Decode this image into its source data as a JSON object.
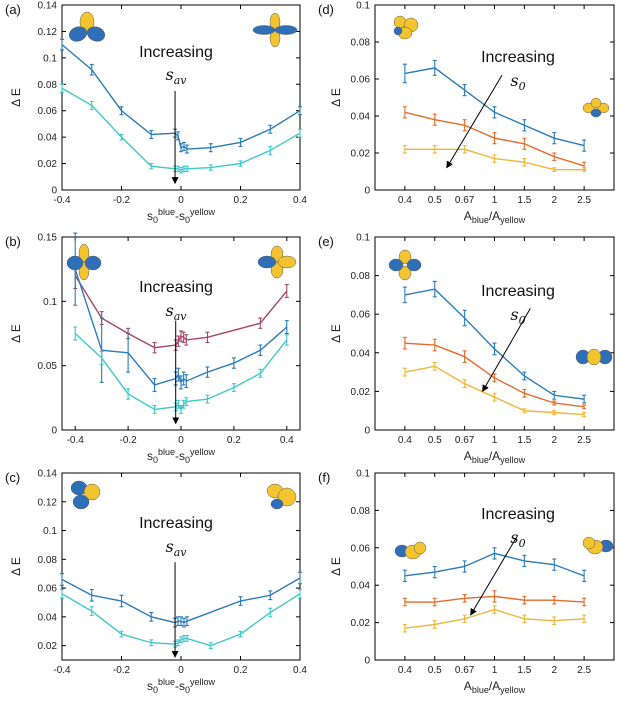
{
  "colors": {
    "blue": "#2a7cb8",
    "cyan": "#3fc9cc",
    "red": "#a34866",
    "orange": "#e46c2a",
    "yellow": "#f0b63a",
    "orb_blue": "#2f6fb7",
    "orb_yellow": "#f4c430"
  },
  "chart_data": [
    {
      "id": "a",
      "panel_label": "(a)",
      "type": "line",
      "xlabel": "s0blue-s0yellow",
      "ylabel": "Δ E",
      "xlim": [
        -0.4,
        0.4
      ],
      "ylim": [
        0,
        0.14
      ],
      "xticks": [
        -0.4,
        -0.2,
        0,
        0.2,
        0.4
      ],
      "xtick_labels": [
        "-0.4",
        "-0.2",
        "0",
        "0.2",
        "0.4"
      ],
      "yticks": [
        0,
        0.02,
        0.04,
        0.06,
        0.08,
        0.1,
        0.12,
        0.14
      ],
      "ytick_labels": [
        "0",
        "0.02",
        "0.04",
        "0.06",
        "0.08",
        "0.1",
        "0.12",
        "0.14"
      ],
      "annotation": {
        "text": "Increasing",
        "symbol": "s",
        "subscript": "av",
        "arrow": {
          "x": -0.02,
          "y_start": 0.075,
          "y_end": 0.005
        }
      },
      "series": [
        {
          "color": "blue",
          "x": [
            -0.4,
            -0.3,
            -0.2,
            -0.1,
            -0.02,
            -0.01,
            0,
            0.01,
            0.02,
            0.1,
            0.2,
            0.3,
            0.4
          ],
          "y": [
            0.11,
            0.091,
            0.06,
            0.042,
            0.043,
            0.041,
            0.032,
            0.033,
            0.031,
            0.032,
            0.036,
            0.046,
            0.06
          ],
          "err": [
            0.004,
            0.004,
            0.003,
            0.003,
            0.003,
            0.003,
            0.003,
            0.003,
            0.003,
            0.003,
            0.003,
            0.003,
            0.003
          ]
        },
        {
          "color": "cyan",
          "x": [
            -0.4,
            -0.3,
            -0.2,
            -0.1,
            -0.02,
            -0.01,
            0,
            0.01,
            0.02,
            0.1,
            0.2,
            0.3,
            0.4
          ],
          "y": [
            0.077,
            0.064,
            0.04,
            0.018,
            0.016,
            0.016,
            0.015,
            0.016,
            0.016,
            0.017,
            0.02,
            0.03,
            0.043
          ],
          "err": [
            0.003,
            0.003,
            0.002,
            0.002,
            0.002,
            0.002,
            0.002,
            0.002,
            0.002,
            0.002,
            0.002,
            0.003,
            0.003
          ]
        }
      ],
      "icons": [
        {
          "name": "orbital-icon-three-lobe-blue",
          "pos": "top-left",
          "style": "a_left"
        },
        {
          "name": "orbital-icon-cross-blue",
          "pos": "top-right",
          "style": "a_right"
        }
      ]
    },
    {
      "id": "b",
      "panel_label": "(b)",
      "type": "line",
      "xlabel": "s0blue-s0yellow",
      "ylabel": "Δ E",
      "xlim": [
        -0.45,
        0.45
      ],
      "ylim": [
        0,
        0.15
      ],
      "xticks": [
        -0.4,
        -0.2,
        0,
        0.2,
        0.4
      ],
      "xtick_labels": [
        "-0.4",
        "-0.2",
        "0",
        "0.2",
        "0.4"
      ],
      "yticks": [
        0,
        0.05,
        0.1,
        0.15
      ],
      "ytick_labels": [
        "0",
        "0.05",
        "0.1",
        "0.15"
      ],
      "annotation": {
        "text": "Increasing",
        "symbol": "s",
        "subscript": "av",
        "arrow": {
          "x": -0.02,
          "y_start": 0.085,
          "y_end": 0.005
        }
      },
      "series": [
        {
          "color": "red",
          "x": [
            -0.4,
            -0.3,
            -0.2,
            -0.1,
            -0.02,
            -0.01,
            0,
            0.01,
            0.02,
            0.1,
            0.3,
            0.4
          ],
          "y": [
            0.12,
            0.087,
            0.075,
            0.064,
            0.066,
            0.069,
            0.073,
            0.072,
            0.07,
            0.072,
            0.083,
            0.108
          ],
          "err": [
            0.01,
            0.005,
            0.004,
            0.004,
            0.004,
            0.004,
            0.004,
            0.004,
            0.004,
            0.004,
            0.004,
            0.005
          ]
        },
        {
          "color": "blue",
          "x": [
            -0.4,
            -0.3,
            -0.2,
            -0.1,
            -0.02,
            -0.01,
            0,
            0.01,
            0.02,
            0.1,
            0.2,
            0.3,
            0.4
          ],
          "y": [
            0.125,
            0.062,
            0.06,
            0.035,
            0.04,
            0.043,
            0.037,
            0.04,
            0.038,
            0.045,
            0.052,
            0.062,
            0.08
          ],
          "err": [
            0.028,
            0.025,
            0.015,
            0.005,
            0.005,
            0.005,
            0.005,
            0.005,
            0.005,
            0.004,
            0.004,
            0.004,
            0.005
          ]
        },
        {
          "color": "cyan",
          "x": [
            -0.4,
            -0.3,
            -0.2,
            -0.1,
            -0.02,
            -0.01,
            0,
            0.01,
            0.02,
            0.1,
            0.2,
            0.3,
            0.4
          ],
          "y": [
            0.075,
            0.056,
            0.028,
            0.016,
            0.018,
            0.02,
            0.016,
            0.02,
            0.022,
            0.024,
            0.033,
            0.044,
            0.07
          ],
          "err": [
            0.005,
            0.005,
            0.004,
            0.003,
            0.003,
            0.003,
            0.003,
            0.003,
            0.003,
            0.003,
            0.003,
            0.003,
            0.004
          ]
        }
      ],
      "icons": [
        {
          "name": "orbital-icon-cross-yellow",
          "pos": "top-left",
          "style": "b_left"
        },
        {
          "name": "orbital-icon-cross-yellow-side",
          "pos": "top-right",
          "style": "b_right"
        }
      ]
    },
    {
      "id": "c",
      "panel_label": "(c)",
      "type": "line",
      "xlabel": "s0blue-s0yellow",
      "ylabel": "Δ E",
      "xlim": [
        -0.4,
        0.4
      ],
      "ylim": [
        0.01,
        0.14
      ],
      "xticks": [
        -0.4,
        -0.2,
        0,
        0.2,
        0.4
      ],
      "xtick_labels": [
        "-0.4",
        "-0.2",
        "0",
        "0.2",
        "0.4"
      ],
      "yticks": [
        0.02,
        0.04,
        0.06,
        0.08,
        0.1,
        0.12,
        0.14
      ],
      "ytick_labels": [
        "0.02",
        "0.04",
        "0.06",
        "0.08",
        "0.1",
        "0.12",
        "0.14"
      ],
      "annotation": {
        "text": "Increasing",
        "symbol": "s",
        "subscript": "av",
        "arrow": {
          "x": -0.02,
          "y_start": 0.078,
          "y_end": 0.012
        }
      },
      "series": [
        {
          "color": "blue",
          "x": [
            -0.4,
            -0.3,
            -0.2,
            -0.1,
            -0.02,
            -0.01,
            0,
            0.01,
            0.02,
            0.2,
            0.3,
            0.4
          ],
          "y": [
            0.066,
            0.055,
            0.051,
            0.04,
            0.036,
            0.037,
            0.037,
            0.036,
            0.037,
            0.051,
            0.055,
            0.067
          ],
          "err": [
            0.004,
            0.004,
            0.004,
            0.003,
            0.003,
            0.003,
            0.003,
            0.003,
            0.003,
            0.003,
            0.003,
            0.004
          ]
        },
        {
          "color": "cyan",
          "x": [
            -0.4,
            -0.3,
            -0.2,
            -0.1,
            -0.02,
            -0.01,
            0,
            0.01,
            0.02,
            0.1,
            0.2,
            0.3,
            0.4
          ],
          "y": [
            0.056,
            0.044,
            0.028,
            0.022,
            0.021,
            0.022,
            0.024,
            0.025,
            0.025,
            0.02,
            0.028,
            0.043,
            0.056
          ],
          "err": [
            0.003,
            0.003,
            0.002,
            0.002,
            0.002,
            0.002,
            0.002,
            0.002,
            0.002,
            0.002,
            0.002,
            0.003,
            0.003
          ]
        }
      ],
      "icons": [
        {
          "name": "orbital-icon-mixed-left",
          "pos": "top-left",
          "style": "c_left"
        },
        {
          "name": "orbital-icon-mixed-right",
          "pos": "top-right",
          "style": "c_right"
        }
      ]
    },
    {
      "id": "d",
      "panel_label": "(d)",
      "type": "line",
      "xlabel": "Ablue/Ayellow",
      "ylabel": "Δ E",
      "xlim": [
        0,
        8
      ],
      "ylim": [
        0,
        0.1
      ],
      "xticks": [
        1,
        2,
        3,
        4,
        5,
        6,
        7
      ],
      "xtick_labels": [
        "0.4",
        "0.5",
        "0.67",
        "1",
        "1.5",
        "2",
        "2.5"
      ],
      "yticks": [
        0,
        0.02,
        0.04,
        0.06,
        0.08,
        0.1
      ],
      "ytick_labels": [
        "0",
        "0.02",
        "0.04",
        "0.06",
        "0.08",
        "0.1"
      ],
      "annotation": {
        "text": "Increasing",
        "symbol": "s",
        "subscript": "0",
        "arrow": {
          "x_start": 4.25,
          "y_start": 0.062,
          "x_end": 2.4,
          "y_end": 0.012
        }
      },
      "series": [
        {
          "color": "blue",
          "x": [
            1,
            2,
            3,
            4,
            5,
            6,
            7
          ],
          "y": [
            0.063,
            0.066,
            0.054,
            0.042,
            0.035,
            0.028,
            0.024
          ],
          "err": [
            0.005,
            0.004,
            0.003,
            0.003,
            0.003,
            0.003,
            0.003
          ]
        },
        {
          "color": "orange",
          "x": [
            1,
            2,
            3,
            4,
            5,
            6,
            7
          ],
          "y": [
            0.042,
            0.038,
            0.035,
            0.028,
            0.025,
            0.018,
            0.013
          ],
          "err": [
            0.003,
            0.003,
            0.003,
            0.003,
            0.003,
            0.002,
            0.002
          ]
        },
        {
          "color": "yellow",
          "x": [
            1,
            2,
            3,
            4,
            5,
            6,
            7
          ],
          "y": [
            0.022,
            0.022,
            0.022,
            0.017,
            0.015,
            0.011,
            0.011
          ],
          "err": [
            0.002,
            0.002,
            0.002,
            0.002,
            0.002,
            0.001,
            0.001
          ]
        }
      ],
      "icons": [
        {
          "name": "orbital-icon-yellow-cluster",
          "pos": "top-left",
          "style": "d_left"
        },
        {
          "name": "orbital-icon-yellow-cluster-small",
          "pos": "right",
          "style": "d_right"
        }
      ]
    },
    {
      "id": "e",
      "panel_label": "(e)",
      "type": "line",
      "xlabel": "Ablue/Ayellow",
      "ylabel": "Δ E",
      "xlim": [
        0,
        8
      ],
      "ylim": [
        0,
        0.1
      ],
      "xticks": [
        1,
        2,
        3,
        4,
        5,
        6,
        7
      ],
      "xtick_labels": [
        "0.4",
        "0.5",
        "0.67",
        "1",
        "1.5",
        "2",
        "2.5"
      ],
      "yticks": [
        0,
        0.02,
        0.04,
        0.06,
        0.08,
        0.1
      ],
      "ytick_labels": [
        "0",
        "0.02",
        "0.04",
        "0.06",
        "0.08",
        "0.1"
      ],
      "annotation": {
        "text": "Increasing",
        "symbol": "s",
        "subscript": "0",
        "arrow": {
          "x_start": 5.2,
          "y_start": 0.063,
          "x_end": 3.6,
          "y_end": 0.02
        }
      },
      "series": [
        {
          "color": "blue",
          "x": [
            1,
            2,
            3,
            4,
            5,
            6,
            7
          ],
          "y": [
            0.07,
            0.073,
            0.058,
            0.042,
            0.028,
            0.018,
            0.016
          ],
          "err": [
            0.004,
            0.004,
            0.004,
            0.003,
            0.002,
            0.002,
            0.002
          ]
        },
        {
          "color": "orange",
          "x": [
            1,
            2,
            3,
            4,
            5,
            6,
            7
          ],
          "y": [
            0.045,
            0.044,
            0.038,
            0.027,
            0.019,
            0.014,
            0.012
          ],
          "err": [
            0.003,
            0.003,
            0.003,
            0.002,
            0.002,
            0.001,
            0.001
          ]
        },
        {
          "color": "yellow",
          "x": [
            1,
            2,
            3,
            4,
            5,
            6,
            7
          ],
          "y": [
            0.03,
            0.033,
            0.024,
            0.017,
            0.01,
            0.009,
            0.008
          ],
          "err": [
            0.002,
            0.002,
            0.002,
            0.002,
            0.001,
            0.001,
            0.001
          ]
        }
      ],
      "icons": [
        {
          "name": "orbital-icon-yellow-cross",
          "pos": "top-left",
          "style": "e_left"
        },
        {
          "name": "orbital-icon-yellow-row",
          "pos": "right",
          "style": "e_right"
        }
      ]
    },
    {
      "id": "f",
      "panel_label": "(f)",
      "type": "line",
      "xlabel": "Ablue/Ayellow",
      "ylabel": "Δ E",
      "xlim": [
        0,
        8
      ],
      "ylim": [
        0,
        0.1
      ],
      "xticks": [
        1,
        2,
        3,
        4,
        5,
        6,
        7
      ],
      "xtick_labels": [
        "0.4",
        "0.5",
        "0.67",
        "1",
        "1.5",
        "2",
        "2.5"
      ],
      "yticks": [
        0,
        0.02,
        0.04,
        0.06,
        0.08,
        0.1
      ],
      "ytick_labels": [
        "0",
        "0.02",
        "0.04",
        "0.06",
        "0.08",
        "0.1"
      ],
      "annotation": {
        "text": "Increasing",
        "symbol": "s",
        "subscript": "0",
        "arrow": {
          "x_start": 4.75,
          "y_start": 0.066,
          "x_end": 3.2,
          "y_end": 0.024
        }
      },
      "series": [
        {
          "color": "blue",
          "x": [
            1,
            2,
            3,
            4,
            5,
            6,
            7
          ],
          "y": [
            0.045,
            0.047,
            0.05,
            0.057,
            0.053,
            0.051,
            0.045
          ],
          "err": [
            0.003,
            0.003,
            0.003,
            0.003,
            0.003,
            0.003,
            0.003
          ]
        },
        {
          "color": "orange",
          "x": [
            1,
            2,
            3,
            4,
            5,
            6,
            7
          ],
          "y": [
            0.031,
            0.031,
            0.033,
            0.034,
            0.032,
            0.032,
            0.031
          ],
          "err": [
            0.002,
            0.002,
            0.002,
            0.003,
            0.002,
            0.002,
            0.002
          ]
        },
        {
          "color": "yellow",
          "x": [
            1,
            2,
            3,
            4,
            5,
            6,
            7
          ],
          "y": [
            0.017,
            0.019,
            0.022,
            0.027,
            0.022,
            0.021,
            0.022
          ],
          "err": [
            0.002,
            0.002,
            0.002,
            0.002,
            0.002,
            0.002,
            0.002
          ]
        }
      ],
      "icons": [
        {
          "name": "orbital-icon-blue-yellow-pair",
          "pos": "top-left",
          "style": "f_left"
        },
        {
          "name": "orbital-icon-blue-yellow-pair-right",
          "pos": "top-right",
          "style": "f_right"
        }
      ]
    }
  ]
}
